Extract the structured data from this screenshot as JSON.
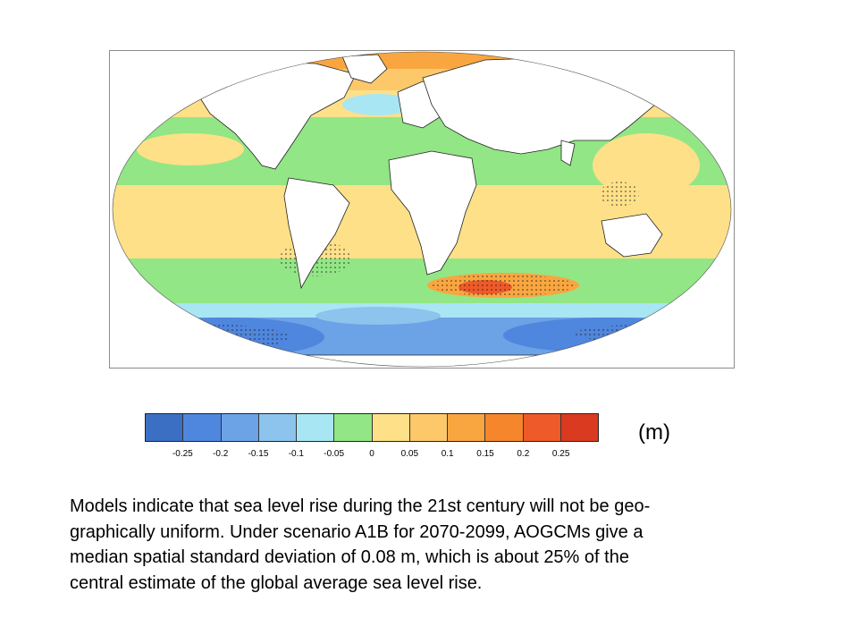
{
  "map": {
    "projection": "robinson",
    "stippling": true
  },
  "colorbar": {
    "unit": "(m)",
    "colors": [
      "#3a6fc4",
      "#4f86de",
      "#6ca2e6",
      "#8cc4ee",
      "#a8e6f4",
      "#92e685",
      "#fde088",
      "#fcc86a",
      "#f9a640",
      "#f5862c",
      "#ee5a2a",
      "#d93a20"
    ],
    "ticks": [
      "-0.25",
      "-0.2",
      "-0.15",
      "-0.1",
      "-0.05",
      "0",
      "0.05",
      "0.1",
      "0.15",
      "0.2",
      "0.25"
    ]
  },
  "caption": {
    "lines": [
      "Models indicate that sea level rise during the 21st century will not be geo-",
      "graphically uniform. Under scenario A1B for 2070-2099, AOGCMs give a",
      "median spatial standard deviation of 0.08 m, which is about 25% of the",
      "central estimate of the global average sea level rise."
    ]
  }
}
